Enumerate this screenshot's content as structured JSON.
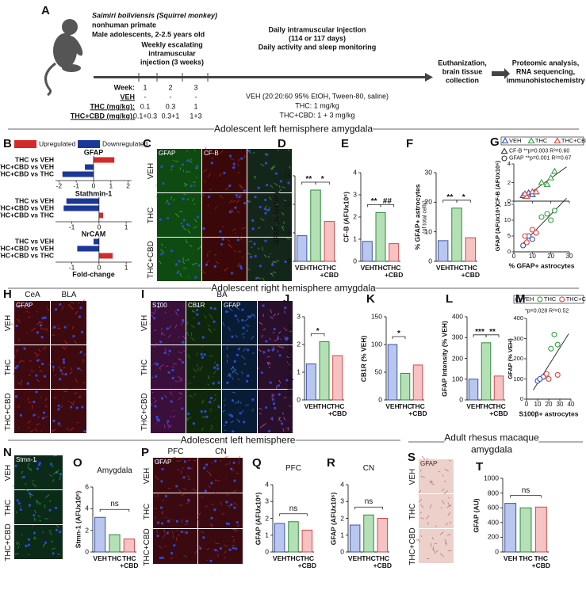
{
  "panel_letters": [
    "A",
    "B",
    "C",
    "D",
    "E",
    "F",
    "G",
    "H",
    "I",
    "J",
    "K",
    "L",
    "M",
    "N",
    "O",
    "P",
    "Q",
    "R",
    "S",
    "T"
  ],
  "section_headers": [
    "Adolescent left hemisphere amygdala",
    "Adolescent right hemisphere amygdala",
    "Adolescent left hemisphere",
    "Adult rhesus macaque",
    "amygdala"
  ],
  "timeline": {
    "species": "Saimiri boliviensis (Squirrel monkey)",
    "subject": [
      "nonhuman primate",
      "Male adolescents, 2-2.5 years old"
    ],
    "phase1": [
      "Weekly escalating",
      "intramuscular",
      "injection (3 weeks)"
    ],
    "phase2": [
      "Daily intramuscular injection",
      "(114 or 117 days)",
      "Daily activity and sleep monitoring"
    ],
    "end1": [
      "Euthanization,",
      "brain tissue",
      "collection"
    ],
    "end2": [
      "Proteomic analysis,",
      "RNA sequencing,",
      "immunohistochemistry"
    ],
    "dose_rows": [
      [
        "Week:",
        "1",
        "2",
        "3"
      ],
      [
        "VEH",
        "-",
        "-",
        "-"
      ],
      [
        "THC (mg/kg):",
        "0.1",
        "0.3",
        "1"
      ],
      [
        "THC+CBD (mg/kg):",
        "0.1+0.3",
        "0.3+1",
        "1+3"
      ]
    ],
    "daily_doses": [
      "VEH (20:20:60 95% EtOH, Tween-80, saline)",
      "THC: 1 mg/kg",
      "THC+CBD: 1 + 3 mg/kg"
    ]
  },
  "images": [
    {
      "channels": [
        "GFAP",
        "CF-B"
      ],
      "rows": [
        "VEH",
        "THC",
        "THC+CBD"
      ]
    },
    {
      "regions": [
        "CeA",
        "BLA"
      ],
      "channels": [
        "GFAP"
      ],
      "rows": [
        "VEH",
        "THC",
        "THC+CBD"
      ]
    },
    {
      "regions": [
        "BA"
      ],
      "channels": [
        "S100",
        "CB1R",
        "GFAP"
      ],
      "rows": [
        "VEH",
        "THC",
        "THC+CBD"
      ]
    },
    {
      "channels": [
        "Stmn-1"
      ],
      "rows": [
        "VEH",
        "THC",
        "THC+CBD"
      ]
    },
    {
      "regions": [
        "PFC",
        "CN"
      ],
      "channels": [
        "GFAP"
      ],
      "rows": [
        "VEH",
        "THC",
        "THC+CBD"
      ]
    },
    {
      "channels": [
        "GFAP"
      ],
      "rows": [
        "VEH",
        "THC",
        "THC+CBD"
      ]
    }
  ],
  "chart_data": [
    {
      "type": "fold_change",
      "xlabel": "Fold-change",
      "legend": [
        {
          "name": "Upregulated",
          "color": "#d42a2a"
        },
        {
          "name": "Downregulated",
          "color": "#1c3896"
        }
      ],
      "groups": [
        {
          "name": "GFAP",
          "categories": [
            "THC vs VEH",
            "THC+CBD vs VEH",
            "THC+CBD vs THC"
          ],
          "values": [
            1.2,
            -0.5,
            -1.8
          ],
          "xlim": [
            -2.2,
            2.2
          ],
          "xticks": [
            -2,
            -1,
            0,
            1,
            2
          ]
        },
        {
          "name": "Stathmin-1",
          "categories": [
            "THC vs VEH",
            "THC+CBD vs VEH",
            "THC+CBD vs THC"
          ],
          "values": [
            -1.2,
            -1.3,
            0.15
          ],
          "xlim": [
            -1.6,
            1.2
          ],
          "xticks": [
            -1,
            0,
            1
          ]
        },
        {
          "name": "NrCAM",
          "categories": [
            "THC vs VEH",
            "THC+CBD vs VEH",
            "THC+CBD vs THC"
          ],
          "values": [
            -0.2,
            -0.8,
            0.5
          ],
          "xlim": [
            -1.6,
            1.2
          ],
          "xticks": [
            -1,
            0,
            1
          ]
        }
      ]
    },
    {
      "type": "bar",
      "ylabel": "GFAP (AFUx10⁶)",
      "categories": [
        "VEH",
        "THC",
        "THC +CBD"
      ],
      "values": [
        4.5,
        12.5,
        7
      ],
      "ylim": [
        0,
        15
      ],
      "yticks": [
        0,
        5,
        10,
        15
      ],
      "significance": [
        "**",
        "*"
      ],
      "colors": [
        "#b9c6ee",
        "#b5e0b5",
        "#f6c2c2"
      ],
      "edge_colors": [
        "#3a55b0",
        "#2e8b3e",
        "#d04a4a"
      ]
    },
    {
      "type": "bar",
      "ylabel": "CF-B (AFUx10⁶)",
      "categories": [
        "VEH",
        "THC",
        "THC +CBD"
      ],
      "values": [
        0.9,
        2.2,
        0.8
      ],
      "ylim": [
        0,
        4
      ],
      "yticks": [
        0,
        1,
        2,
        3,
        4
      ],
      "significance": [
        "**",
        "##"
      ],
      "colors": [
        "#b9c6ee",
        "#b5e0b5",
        "#f6c2c2"
      ],
      "edge_colors": [
        "#3a55b0",
        "#2e8b3e",
        "#d04a4a"
      ]
    },
    {
      "type": "bar",
      "ylabel": "% GFAP+ astrocytes",
      "ylabel_note": "(of total cells)",
      "categories": [
        "VEH",
        "THC",
        "THC +CBD"
      ],
      "values": [
        7,
        18,
        8
      ],
      "ylim": [
        0,
        30
      ],
      "yticks": [
        0,
        10,
        20,
        30
      ],
      "significance": [
        "**",
        "*"
      ],
      "colors": [
        "#b9c6ee",
        "#b5e0b5",
        "#f6c2c2"
      ],
      "edge_colors": [
        "#3a55b0",
        "#2e8b3e",
        "#d04a4a"
      ]
    },
    {
      "type": "scatter",
      "xlabel": "% GFAP+ astrocytes",
      "xlim": [
        0,
        30
      ],
      "xticks": [
        0,
        10,
        20,
        30
      ],
      "legend": [
        {
          "name": "VEH",
          "color": "#2b4fb5"
        },
        {
          "name": "THC",
          "color": "#2e9e3e"
        },
        {
          "name": "THC+CBD",
          "color": "#e0403a"
        }
      ],
      "legend_marker": "triangle",
      "annotations": [
        "CF-B **p=0.003 R²=0.60",
        "GFAP **p=0.001 R²=0.67"
      ],
      "panels": [
        {
          "ylabel": "CF-B (AFUx10⁶)",
          "ylim": [
            0,
            4
          ],
          "yticks": [
            0,
            2,
            4
          ],
          "marker": "triangle",
          "series": [
            {
              "x": [
                5,
                8,
                12,
                10
              ],
              "y": [
                0.6,
                0.9,
                1.0,
                0.7
              ]
            },
            {
              "x": [
                15,
                22,
                18,
                20
              ],
              "y": [
                2.0,
                3.2,
                1.8,
                2.5
              ]
            },
            {
              "x": [
                7,
                10,
                6,
                12
              ],
              "y": [
                0.5,
                1.0,
                0.8,
                1.0
              ]
            }
          ]
        },
        {
          "ylabel": "GFAP (AFUx10⁶)",
          "ylim": [
            0,
            15
          ],
          "yticks": [
            0,
            5,
            10,
            15
          ],
          "marker": "circle",
          "series": [
            {
              "x": [
                5,
                8,
                12,
                10
              ],
              "y": [
                2,
                5,
                6,
                4
              ]
            },
            {
              "x": [
                15,
                22,
                18,
                20
              ],
              "y": [
                11,
                13,
                12,
                10
              ]
            },
            {
              "x": [
                7,
                10,
                6,
                12
              ],
              "y": [
                3,
                7,
                5,
                6
              ]
            }
          ]
        }
      ]
    },
    {
      "type": "bar",
      "ylabel": "S100β+ x 10⁴ cells/mm³",
      "categories": [
        "VEH",
        "THC",
        "THC +CBD"
      ],
      "values": [
        1.3,
        2.1,
        1.6
      ],
      "ylim": [
        0,
        3
      ],
      "yticks": [
        0,
        1,
        2,
        3
      ],
      "significance": [
        "*"
      ],
      "colors": [
        "#b9c6ee",
        "#b5e0b5",
        "#f6c2c2"
      ],
      "edge_colors": [
        "#3a55b0",
        "#2e8b3e",
        "#d04a4a"
      ]
    },
    {
      "type": "bar",
      "ylabel": "CB1R (% VEH)",
      "categories": [
        "VEH",
        "THC",
        "THC +CBD"
      ],
      "values": [
        100,
        48,
        63
      ],
      "ylim": [
        0,
        150
      ],
      "yticks": [
        0,
        50,
        100,
        150
      ],
      "significance": [
        "*"
      ],
      "colors": [
        "#b9c6ee",
        "#b5e0b5",
        "#f6c2c2"
      ],
      "edge_colors": [
        "#3a55b0",
        "#2e8b3e",
        "#d04a4a"
      ]
    },
    {
      "type": "bar",
      "ylabel": "GFAP Intensity (% VEH)",
      "categories": [
        "VEH",
        "THC",
        "THC +CBD"
      ],
      "values": [
        100,
        275,
        115
      ],
      "ylim": [
        0,
        400
      ],
      "yticks": [
        0,
        100,
        200,
        300,
        400
      ],
      "significance": [
        "***",
        "**"
      ],
      "colors": [
        "#b9c6ee",
        "#b5e0b5",
        "#f6c2c2"
      ],
      "edge_colors": [
        "#3a55b0",
        "#2e8b3e",
        "#d04a4a"
      ]
    },
    {
      "type": "scatter",
      "xlabel": "S100β+ astrocytes",
      "xlim": [
        0,
        40
      ],
      "xticks": [
        0,
        10,
        20,
        30,
        40
      ],
      "legend": [
        {
          "name": "VEH",
          "color": "#2b4fb5"
        },
        {
          "name": "THC",
          "color": "#2e9e3e"
        },
        {
          "name": "THC+CBD",
          "color": "#e0403a"
        }
      ],
      "legend_marker": "circle",
      "annotations": [
        "*p=0.028 R²=0.52"
      ],
      "panels": [
        {
          "ylabel": "GFAP (% VEH)",
          "ylim": [
            0,
            400
          ],
          "yticks": [
            0,
            100,
            200,
            300,
            400
          ],
          "marker": "circle",
          "series": [
            {
              "x": [
                10,
                15,
                12
              ],
              "y": [
                90,
                110,
                100
              ]
            },
            {
              "x": [
                25,
                22,
                28
              ],
              "y": [
                320,
                250,
                270
              ]
            },
            {
              "x": [
                20,
                28,
                18
              ],
              "y": [
                100,
                120,
                125
              ]
            }
          ]
        }
      ]
    },
    {
      "type": "bar",
      "title": "Amygdala",
      "ylabel": "Stmn-1 (AFUx10⁶)",
      "categories": [
        "VEH",
        "THC",
        "THC +CBD"
      ],
      "values": [
        3.2,
        1.6,
        1.2
      ],
      "ylim": [
        0,
        6
      ],
      "yticks": [
        0,
        2,
        4,
        6
      ],
      "significance": [
        "ns"
      ],
      "colors": [
        "#b9c6ee",
        "#b5e0b5",
        "#f6c2c2"
      ],
      "edge_colors": [
        "#3a55b0",
        "#2e8b3e",
        "#d04a4a"
      ]
    },
    {
      "type": "bar",
      "title": "PFC",
      "ylabel": "GFAP (AFUx10⁶)",
      "categories": [
        "VEH",
        "THC",
        "THC +CBD"
      ],
      "values": [
        1.7,
        1.8,
        1.3
      ],
      "ylim": [
        0,
        4
      ],
      "yticks": [
        0,
        1,
        2,
        3,
        4
      ],
      "significance": [
        "ns"
      ],
      "colors": [
        "#b9c6ee",
        "#b5e0b5",
        "#f6c2c2"
      ],
      "edge_colors": [
        "#3a55b0",
        "#2e8b3e",
        "#d04a4a"
      ]
    },
    {
      "type": "bar",
      "title": "CN",
      "ylabel": "GFAP (AFUx10⁶)",
      "categories": [
        "VEH",
        "THC",
        "THC +CBD"
      ],
      "values": [
        1.6,
        2.2,
        2.0
      ],
      "ylim": [
        0,
        4
      ],
      "yticks": [
        0,
        1,
        2,
        3,
        4
      ],
      "significance": [
        "ns"
      ],
      "colors": [
        "#b9c6ee",
        "#b5e0b5",
        "#f6c2c2"
      ],
      "edge_colors": [
        "#3a55b0",
        "#2e8b3e",
        "#d04a4a"
      ]
    },
    {
      "type": "bar",
      "ylabel": "GFAP (AU)",
      "categories": [
        "VEH",
        "THC",
        "THC +CBD"
      ],
      "values": [
        660,
        600,
        610
      ],
      "ylim": [
        0,
        1000
      ],
      "yticks": [
        0,
        200,
        400,
        600,
        800,
        1000
      ],
      "significance": [
        "ns"
      ],
      "colors": [
        "#b9c6ee",
        "#b5e0b5",
        "#f6c2c2"
      ],
      "edge_colors": [
        "#3a55b0",
        "#2e8b3e",
        "#d04a4a"
      ]
    }
  ]
}
